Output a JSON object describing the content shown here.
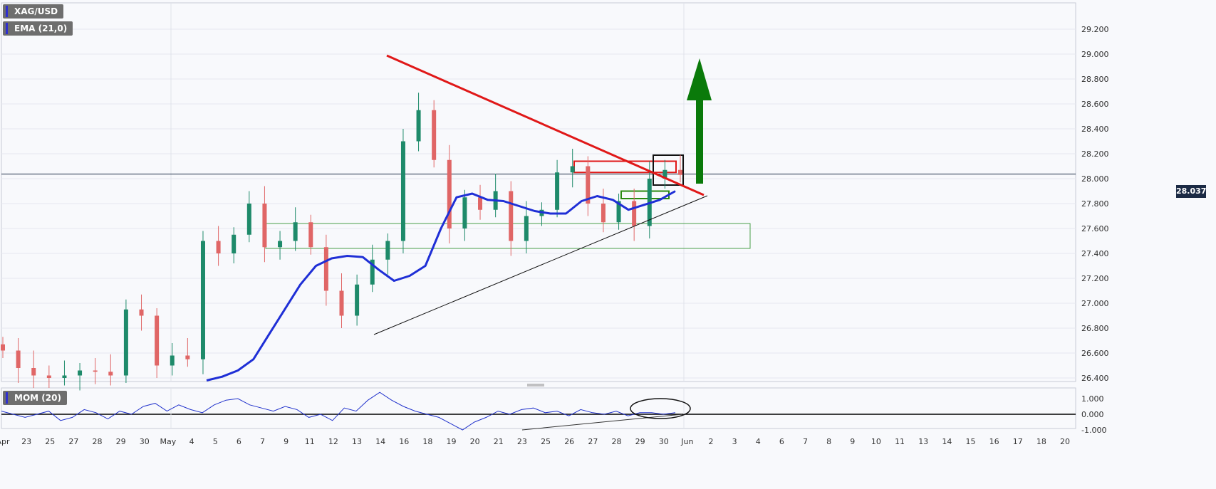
{
  "legend": {
    "symbol": "XAG/USD",
    "ema": "EMA (21,0)",
    "mom": "MOM (20)"
  },
  "current_price": "28.037",
  "colors": {
    "up": "#1e8a6a",
    "down": "#e06666",
    "ema": "#1f2fd6",
    "trend_down": "#e01818",
    "trend_up": "#111111",
    "arrow": "#0a7a0a",
    "mom": "#2233cc",
    "price_line": "#1b2a44"
  },
  "chart_data": [
    {
      "type": "candlestick",
      "title": "XAG/USD",
      "ylim": [
        26.4,
        29.3
      ],
      "yticks": [
        "26.400",
        "26.600",
        "26.800",
        "27.000",
        "27.200",
        "27.400",
        "27.600",
        "27.800",
        "28.000",
        "28.200",
        "28.400",
        "28.600",
        "28.800",
        "29.000",
        "29.200"
      ],
      "xticks": [
        "Apr",
        "23",
        "25",
        "27",
        "28",
        "29",
        "30",
        "May",
        "4",
        "5",
        "6",
        "7",
        "9",
        "11",
        "12",
        "13",
        "14",
        "16",
        "18",
        "19",
        "20",
        "21",
        "23",
        "25",
        "26",
        "27",
        "28",
        "29",
        "30",
        "Jun",
        "2",
        "3",
        "4",
        "6",
        "7",
        "8",
        "9",
        "10",
        "11",
        "13",
        "14",
        "15",
        "16",
        "17",
        "18",
        "20"
      ],
      "series": [
        {
          "name": "EMA (21,0)",
          "values": [
            26.38,
            26.41,
            26.46,
            26.55,
            26.75,
            26.95,
            27.15,
            27.3,
            27.36,
            27.38,
            27.37,
            27.27,
            27.18,
            27.22,
            27.3,
            27.6,
            27.85,
            27.88,
            27.83,
            27.82,
            27.78,
            27.74,
            27.72,
            27.72,
            27.82,
            27.86,
            27.83,
            27.75,
            27.79,
            27.83,
            27.9
          ]
        }
      ],
      "candles_close": [
        26.62,
        26.48,
        26.42,
        26.4,
        26.42,
        26.46,
        26.45,
        26.42,
        26.95,
        26.9,
        26.5,
        26.58,
        26.55,
        27.5,
        27.4,
        27.55,
        27.8,
        27.45,
        27.5,
        27.65,
        27.45,
        27.1,
        26.9,
        27.15,
        27.35,
        27.5,
        28.3,
        28.55,
        28.15,
        27.6,
        27.85,
        27.75,
        27.9,
        27.5,
        27.7,
        27.75,
        28.05,
        28.1,
        27.8,
        27.65,
        27.82,
        27.62,
        28.0,
        28.07,
        28.03
      ],
      "annotations": {
        "resistance_trendline": "red descending trendline",
        "support_trendline": "black ascending trendline",
        "support_zone": [
          27.44,
          27.64
        ],
        "resistance_box": [
          28.05,
          28.14
        ],
        "arrow": "green upward arrow"
      }
    },
    {
      "type": "line",
      "title": "MOM (20)",
      "ylim": [
        -1.1,
        1.8
      ],
      "yticks": [
        "1.000",
        "0.000",
        "-1.000"
      ],
      "series": [
        {
          "name": "MOM (20)",
          "values": [
            0.2,
            0.0,
            -0.2,
            0.0,
            0.2,
            -0.4,
            -0.2,
            0.3,
            0.1,
            -0.3,
            0.2,
            0.0,
            0.5,
            0.7,
            0.2,
            0.6,
            0.3,
            0.1,
            0.6,
            0.9,
            1.0,
            0.6,
            0.4,
            0.2,
            0.5,
            0.3,
            -0.2,
            0.0,
            -0.4,
            0.4,
            0.2,
            0.9,
            1.4,
            0.9,
            0.5,
            0.2,
            0.0,
            -0.2,
            -0.6,
            -1.0,
            -0.5,
            -0.2,
            0.2,
            0.0,
            0.3,
            0.4,
            0.1,
            0.2,
            -0.1,
            0.3,
            0.1,
            0.0,
            0.2,
            -0.1,
            0.1,
            0.1,
            0.0,
            0.1
          ]
        }
      ]
    }
  ]
}
